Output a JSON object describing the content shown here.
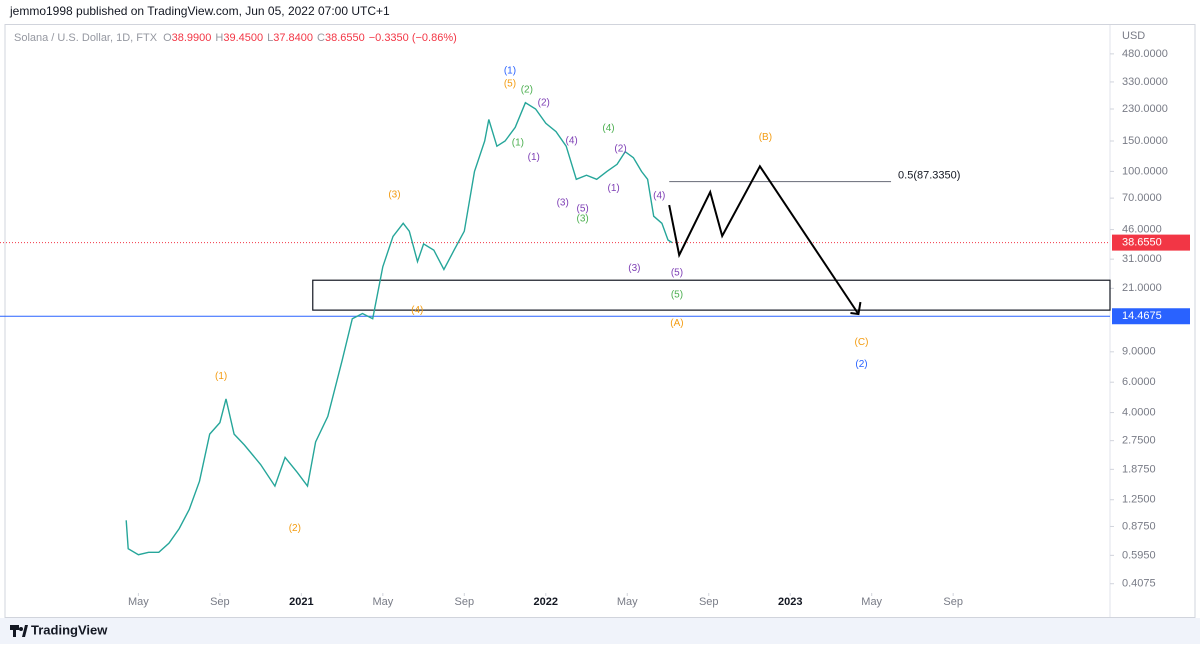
{
  "page": {
    "published": "jemmo1998 published on TradingView.com, Jun 05, 2022 07:00 UTC+1",
    "brand": "TradingView"
  },
  "chart_data": {
    "type": "line",
    "symbol": "Solana / U.S. Dollar, 1D, FTX",
    "ohlc": [
      {
        "key": "O",
        "text": "38.9900"
      },
      {
        "key": "H",
        "text": "39.4500"
      },
      {
        "key": "L",
        "text": "37.8400"
      },
      {
        "key": "C",
        "text": "38.6550"
      }
    ],
    "change": "−0.3350 (−0.86%)",
    "currency": "USD",
    "log_scale": true,
    "color": "#26a69a",
    "x": [
      3.4,
      3.5,
      4,
      4.5,
      5,
      5.5,
      6,
      6.5,
      7,
      7.5,
      8,
      8.3,
      8.7,
      9.2,
      10,
      10.7,
      11.2,
      11.8,
      12.3,
      12.7,
      13.3,
      14,
      14.5,
      15,
      15.5,
      16,
      16.5,
      17,
      17.3,
      17.7,
      18,
      18.5,
      19,
      19.5,
      20,
      20.5,
      21,
      21.2,
      21.6,
      22,
      22.5,
      23,
      23.5,
      24,
      24.5,
      25,
      25.5,
      26,
      26.5,
      27,
      27.5,
      27.9,
      28.3,
      28.7,
      29,
      29.3,
      29.7,
      30,
      30.2
    ],
    "values": [
      0.95,
      0.65,
      0.6,
      0.62,
      0.62,
      0.7,
      0.85,
      1.1,
      1.6,
      3.0,
      3.5,
      4.8,
      3.0,
      2.6,
      2.0,
      1.5,
      2.2,
      1.8,
      1.5,
      2.7,
      3.8,
      8,
      14,
      15,
      14,
      28,
      42,
      50,
      45,
      30,
      38,
      35,
      27,
      35,
      45,
      100,
      150,
      200,
      140,
      150,
      180,
      250,
      230,
      190,
      170,
      140,
      90,
      95,
      90,
      100,
      110,
      130,
      120,
      100,
      90,
      55,
      50,
      40,
      38.655
    ],
    "xlim": [
      -2.55,
      51.7
    ],
    "ylim": [
      0.36,
      660
    ],
    "xticks": [
      {
        "value": 4,
        "label": "May"
      },
      {
        "value": 8,
        "label": "Sep"
      },
      {
        "value": 12,
        "label": "2021"
      },
      {
        "value": 16,
        "label": "May"
      },
      {
        "value": 20,
        "label": "Sep"
      },
      {
        "value": 24,
        "label": "2022"
      },
      {
        "value": 28,
        "label": "May"
      },
      {
        "value": 32,
        "label": "Sep"
      },
      {
        "value": 36,
        "label": "2023"
      },
      {
        "value": 40,
        "label": "May"
      },
      {
        "value": 44,
        "label": "Sep"
      }
    ],
    "yticks": [
      {
        "value": 480,
        "label": "480.0000"
      },
      {
        "value": 330,
        "label": "330.0000"
      },
      {
        "value": 230,
        "label": "230.0000"
      },
      {
        "value": 150,
        "label": "150.0000"
      },
      {
        "value": 100,
        "label": "100.0000"
      },
      {
        "value": 70,
        "label": "70.0000"
      },
      {
        "value": 46,
        "label": "46.0000"
      },
      {
        "value": 31,
        "label": "31.0000"
      },
      {
        "value": 21,
        "label": "21.0000"
      },
      {
        "value": 9,
        "label": "9.0000"
      },
      {
        "value": 6,
        "label": "6.0000"
      },
      {
        "value": 4,
        "label": "4.0000"
      },
      {
        "value": 2.75,
        "label": "2.7500"
      },
      {
        "value": 1.875,
        "label": "1.8750"
      },
      {
        "value": 1.25,
        "label": "1.2500"
      },
      {
        "value": 0.875,
        "label": "0.8750"
      },
      {
        "value": 0.595,
        "label": "0.5950"
      },
      {
        "value": 0.4075,
        "label": "0.4075"
      }
    ],
    "price_tags": [
      {
        "value": 38.655,
        "label": "38.6550",
        "color": "#f23645",
        "line": "dotted"
      },
      {
        "value": 14.4675,
        "label": "14.4675",
        "color": "#2962ff",
        "line": "solid"
      }
    ],
    "fib": {
      "value": 87.335,
      "label": "0.5(87.3350)",
      "x": [
        30.06,
        40.95
      ]
    },
    "box": {
      "x": [
        12.56,
        51.7
      ],
      "y": [
        15.7,
        23.4
      ]
    },
    "projection": {
      "x": [
        30.06,
        30.55,
        32.07,
        32.66,
        34.51,
        39.35
      ],
      "y": [
        63.8,
        32.7,
        75.9,
        42.2,
        107,
        14.9
      ]
    },
    "waves": [
      {
        "text": "(1)",
        "color": "#2962ff",
        "x": 22.24,
        "y": 382
      },
      {
        "text": "(5)",
        "color": "#f39c12",
        "x": 22.24,
        "y": 321
      },
      {
        "text": "(2)",
        "color": "#4caf50",
        "x": 23.07,
        "y": 296
      },
      {
        "text": "(2)",
        "color": "#7e3fb5",
        "x": 23.9,
        "y": 249
      },
      {
        "text": "(1)",
        "color": "#4caf50",
        "x": 22.63,
        "y": 146
      },
      {
        "text": "(1)",
        "color": "#7e3fb5",
        "x": 23.41,
        "y": 121
      },
      {
        "text": "(4)",
        "color": "#7e3fb5",
        "x": 25.27,
        "y": 150
      },
      {
        "text": "(4)",
        "color": "#4caf50",
        "x": 27.08,
        "y": 178
      },
      {
        "text": "(2)",
        "color": "#7e3fb5",
        "x": 27.67,
        "y": 135
      },
      {
        "text": "(1)",
        "color": "#7e3fb5",
        "x": 27.33,
        "y": 80
      },
      {
        "text": "(4)",
        "color": "#7e3fb5",
        "x": 29.57,
        "y": 72
      },
      {
        "text": "(3)",
        "color": "#7e3fb5",
        "x": 24.83,
        "y": 65.5
      },
      {
        "text": "(5)",
        "color": "#7e3fb5",
        "x": 25.81,
        "y": 60.5
      },
      {
        "text": "(3)",
        "color": "#4caf50",
        "x": 25.81,
        "y": 53
      },
      {
        "text": "(3)",
        "color": "#7e3fb5",
        "x": 28.35,
        "y": 27.5
      },
      {
        "text": "(5)",
        "color": "#7e3fb5",
        "x": 30.44,
        "y": 25.8
      },
      {
        "text": "(5)",
        "color": "#4caf50",
        "x": 30.44,
        "y": 19.2
      },
      {
        "text": "(A)",
        "color": "#f39c12",
        "x": 30.44,
        "y": 13.2
      },
      {
        "text": "(B)",
        "color": "#f39c12",
        "x": 34.78,
        "y": 158
      },
      {
        "text": "(C)",
        "color": "#f39c12",
        "x": 39.5,
        "y": 10.2
      },
      {
        "text": "(2)",
        "color": "#2962ff",
        "x": 39.5,
        "y": 7.6
      },
      {
        "text": "(3)",
        "color": "#f39c12",
        "x": 16.57,
        "y": 72.9
      },
      {
        "text": "(4)",
        "color": "#f39c12",
        "x": 17.69,
        "y": 15.7
      },
      {
        "text": "(1)",
        "color": "#f39c12",
        "x": 8.06,
        "y": 6.5
      },
      {
        "text": "(2)",
        "color": "#f39c12",
        "x": 11.68,
        "y": 0.855
      }
    ]
  }
}
